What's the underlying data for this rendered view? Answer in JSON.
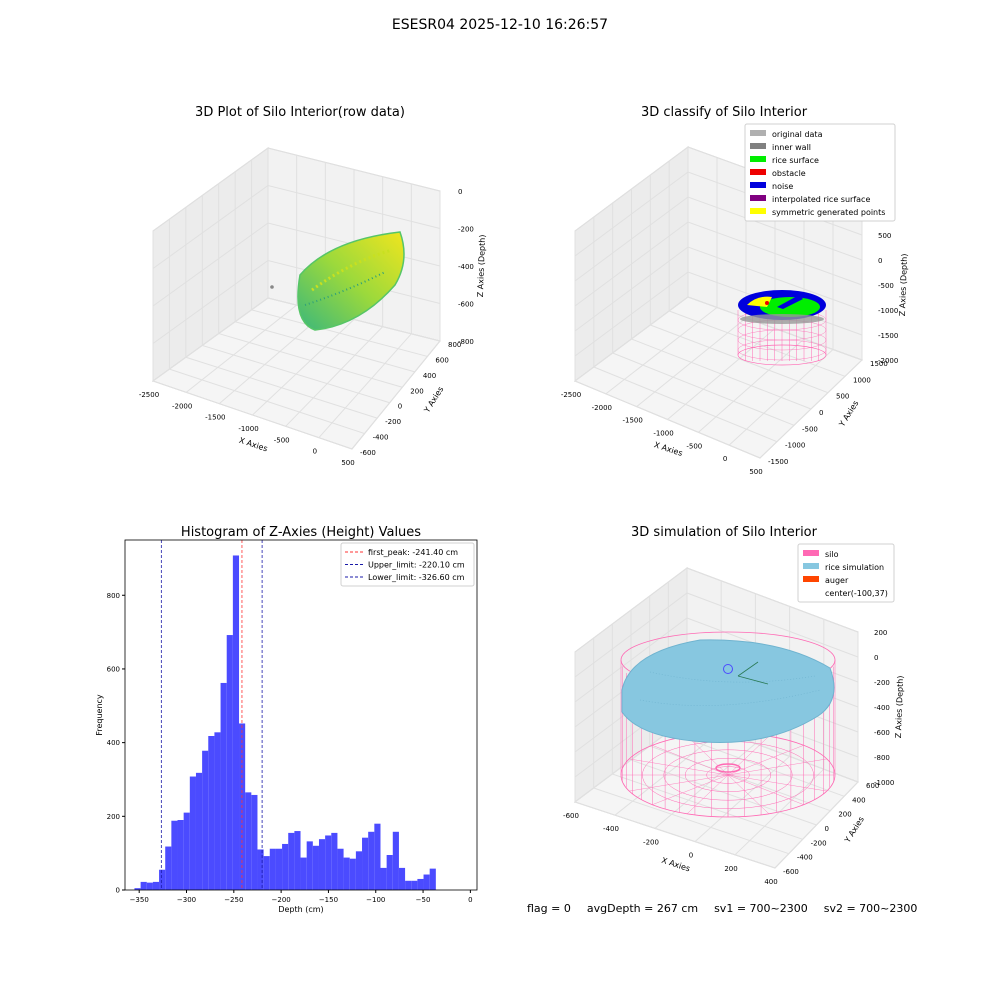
{
  "title": "ESESR04 2025-12-10 16:26:57",
  "footer": {
    "flag": "flag = 0",
    "avg_depth": "avgDepth = 267 cm",
    "sv1": "sv1 = 700~2300",
    "sv2": "sv2 = 700~2300"
  },
  "colors": {
    "hist_bar": "#4b4bff",
    "first_peak": "#ff3333",
    "limit": "#1a1aa8",
    "silo": "#ff69b4",
    "rice": "#87c7e0",
    "auger": "#ff4500"
  },
  "chart_data": [
    {
      "type": "scatter3d",
      "title": "3D Plot of Silo Interior(row data)",
      "xlabel": "X Axies",
      "ylabel": "Y Axies",
      "zlabel": "Z Axies (Depth)",
      "x_ticks": [
        "-2500",
        "-2000",
        "-1500",
        "-1000",
        "-500",
        "0",
        "500"
      ],
      "y_ticks": [
        "-600",
        "-400",
        "-200",
        "0",
        "200",
        "400",
        "600",
        "800"
      ],
      "z_ticks": [
        "0",
        "-200",
        "-400",
        "-600",
        "-800"
      ],
      "colormap": "viridis"
    },
    {
      "type": "scatter3d",
      "title": "3D classify of Silo Interior",
      "xlabel": "X Axies",
      "ylabel": "Y Axies",
      "zlabel": "Z Axies (Depth)",
      "x_ticks": [
        "-2500",
        "-2000",
        "-1500",
        "-1000",
        "-500",
        "0",
        "500"
      ],
      "y_ticks": [
        "-1500",
        "-1000",
        "-500",
        "0",
        "500",
        "1000",
        "1500"
      ],
      "z_ticks": [
        "1000",
        "500",
        "0",
        "-500",
        "-1000",
        "-1500",
        "-2000"
      ],
      "legend_position": "top-right",
      "legend": [
        {
          "label": "original data",
          "color": "#b0b0b0"
        },
        {
          "label": "inner wall",
          "color": "#808080"
        },
        {
          "label": "rice surface",
          "color": "#00ee00"
        },
        {
          "label": "obstacle",
          "color": "#ee0000"
        },
        {
          "label": "noise",
          "color": "#0000dd"
        },
        {
          "label": "interpolated rice surface",
          "color": "#800080"
        },
        {
          "label": "symmetric generated points",
          "color": "#ffff00"
        }
      ]
    },
    {
      "type": "bar",
      "title": "Histogram of Z-Axies (Height) Values",
      "xlabel": "Depth (cm)",
      "ylabel": "Frequency",
      "xlim": [
        -365,
        7
      ],
      "ylim": [
        0,
        950
      ],
      "bin_width": 6.5,
      "bin_start": -355,
      "values": [
        5,
        22,
        20,
        22,
        55,
        118,
        188,
        190,
        210,
        308,
        318,
        378,
        418,
        428,
        562,
        692,
        908,
        452,
        265,
        258,
        110,
        92,
        112,
        112,
        125,
        155,
        160,
        88,
        132,
        120,
        138,
        148,
        155,
        112,
        88,
        85,
        105,
        142,
        158,
        180,
        60,
        95,
        158,
        60,
        25,
        25,
        30,
        42,
        58
      ],
      "x_ticks": [
        -350,
        -300,
        -250,
        -200,
        -150,
        -100,
        -50,
        0
      ],
      "y_ticks": [
        0,
        200,
        400,
        600,
        800
      ],
      "lines": [
        {
          "label": "first_peak: -241.40 cm",
          "x": -241.4,
          "color": "#ff3333"
        },
        {
          "label": "Upper_limit: -220.10 cm",
          "x": -220.1,
          "color": "#1a1aa8"
        },
        {
          "label": "Lower_limit: -326.60 cm",
          "x": -326.6,
          "color": "#1a1aa8"
        }
      ],
      "legend_position": "top-right"
    },
    {
      "type": "surface3d",
      "title": "3D simulation of Silo Interior",
      "xlabel": "X Axies",
      "ylabel": "Y Axies",
      "zlabel": "Z Axies (Depth)",
      "x_ticks": [
        "-600",
        "-400",
        "-200",
        "0",
        "200",
        "400"
      ],
      "y_ticks": [
        "-600",
        "-400",
        "-200",
        "0",
        "200",
        "400",
        "600"
      ],
      "z_ticks": [
        "200",
        "0",
        "-200",
        "-400",
        "-600",
        "-800",
        "-1000"
      ],
      "legend_position": "top-right",
      "legend": [
        {
          "label": "silo",
          "color": "#ff69b4"
        },
        {
          "label": "rice simulation",
          "color": "#87c7e0"
        },
        {
          "label": "auger",
          "color": "#ff4500"
        },
        {
          "label": "center(-100,37)",
          "color": ""
        }
      ]
    }
  ]
}
